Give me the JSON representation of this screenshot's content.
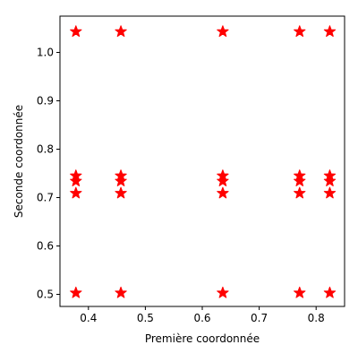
{
  "chart_data": {
    "type": "scatter",
    "title": "",
    "xlabel": "Première coordonnée",
    "ylabel": "Seconde coordonnée",
    "xlim": [
      0.35,
      0.85
    ],
    "ylim": [
      0.475,
      1.075
    ],
    "xticks": [
      0.4,
      0.5,
      0.6,
      0.7,
      0.8
    ],
    "xtick_labels": [
      "0.4",
      "0.5",
      "0.6",
      "0.7",
      "0.8"
    ],
    "yticks": [
      0.5,
      0.6,
      0.7,
      0.8,
      0.9,
      1.0
    ],
    "ytick_labels": [
      "0.5",
      "0.6",
      "0.7",
      "0.8",
      "0.9",
      "1.0"
    ],
    "grid": false,
    "legend": "none",
    "marker": "star",
    "color": "#ff0000",
    "x_levels": [
      0.378,
      0.457,
      0.636,
      0.771,
      0.824
    ],
    "y_levels": [
      0.503,
      0.709,
      0.734,
      0.745,
      1.043
    ],
    "points": [
      {
        "x": 0.378,
        "y": 0.503
      },
      {
        "x": 0.457,
        "y": 0.503
      },
      {
        "x": 0.636,
        "y": 0.503
      },
      {
        "x": 0.771,
        "y": 0.503
      },
      {
        "x": 0.824,
        "y": 0.503
      },
      {
        "x": 0.378,
        "y": 0.709
      },
      {
        "x": 0.457,
        "y": 0.709
      },
      {
        "x": 0.636,
        "y": 0.709
      },
      {
        "x": 0.771,
        "y": 0.709
      },
      {
        "x": 0.824,
        "y": 0.709
      },
      {
        "x": 0.378,
        "y": 0.734
      },
      {
        "x": 0.457,
        "y": 0.734
      },
      {
        "x": 0.636,
        "y": 0.734
      },
      {
        "x": 0.771,
        "y": 0.734
      },
      {
        "x": 0.824,
        "y": 0.734
      },
      {
        "x": 0.378,
        "y": 0.745
      },
      {
        "x": 0.457,
        "y": 0.745
      },
      {
        "x": 0.636,
        "y": 0.745
      },
      {
        "x": 0.771,
        "y": 0.745
      },
      {
        "x": 0.824,
        "y": 0.745
      },
      {
        "x": 0.378,
        "y": 1.043
      },
      {
        "x": 0.457,
        "y": 1.043
      },
      {
        "x": 0.636,
        "y": 1.043
      },
      {
        "x": 0.771,
        "y": 1.043
      },
      {
        "x": 0.824,
        "y": 1.043
      }
    ]
  }
}
